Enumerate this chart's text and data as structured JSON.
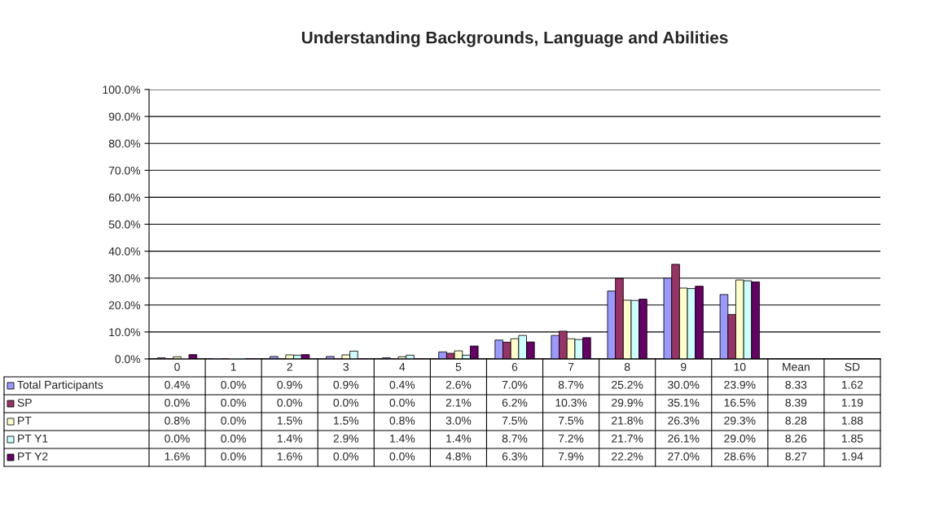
{
  "chart_data": {
    "type": "bar",
    "title": "Understanding Backgrounds, Language and Abilities",
    "categories": [
      "0",
      "1",
      "2",
      "3",
      "4",
      "5",
      "6",
      "7",
      "8",
      "9",
      "10",
      "Mean",
      "SD"
    ],
    "series": [
      {
        "name": "Total Participants",
        "color": "#9999ff",
        "values": [
          0.4,
          0.0,
          0.9,
          0.9,
          0.4,
          2.6,
          7.0,
          8.7,
          25.2,
          30.0,
          23.9,
          null,
          null
        ],
        "value_labels": [
          "0.4%",
          "0.0%",
          "0.9%",
          "0.9%",
          "0.4%",
          "2.6%",
          "7.0%",
          "8.7%",
          "25.2%",
          "30.0%",
          "23.9%",
          "8.33",
          "1.62"
        ]
      },
      {
        "name": "SP",
        "color": "#993366",
        "values": [
          0.0,
          0.0,
          0.0,
          0.0,
          0.0,
          2.1,
          6.2,
          10.3,
          29.9,
          35.1,
          16.5,
          null,
          null
        ],
        "value_labels": [
          "0.0%",
          "0.0%",
          "0.0%",
          "0.0%",
          "0.0%",
          "2.1%",
          "6.2%",
          "10.3%",
          "29.9%",
          "35.1%",
          "16.5%",
          "8.39",
          "1.19"
        ]
      },
      {
        "name": "PT",
        "color": "#ffffcc",
        "values": [
          0.8,
          0.0,
          1.5,
          1.5,
          0.8,
          3.0,
          7.5,
          7.5,
          21.8,
          26.3,
          29.3,
          null,
          null
        ],
        "value_labels": [
          "0.8%",
          "0.0%",
          "1.5%",
          "1.5%",
          "0.8%",
          "3.0%",
          "7.5%",
          "7.5%",
          "21.8%",
          "26.3%",
          "29.3%",
          "8.28",
          "1.88"
        ]
      },
      {
        "name": "PT Y1",
        "color": "#ccffff",
        "values": [
          0.0,
          0.0,
          1.4,
          2.9,
          1.4,
          1.4,
          8.7,
          7.2,
          21.7,
          26.1,
          29.0,
          null,
          null
        ],
        "value_labels": [
          "0.0%",
          "0.0%",
          "1.4%",
          "2.9%",
          "1.4%",
          "1.4%",
          "8.7%",
          "7.2%",
          "21.7%",
          "26.1%",
          "29.0%",
          "8.26",
          "1.85"
        ]
      },
      {
        "name": "PT Y2",
        "color": "#660066",
        "values": [
          1.6,
          0.0,
          1.6,
          0.0,
          0.0,
          4.8,
          6.3,
          7.9,
          22.2,
          27.0,
          28.6,
          null,
          null
        ],
        "value_labels": [
          "1.6%",
          "0.0%",
          "1.6%",
          "0.0%",
          "0.0%",
          "4.8%",
          "6.3%",
          "7.9%",
          "22.2%",
          "27.0%",
          "28.6%",
          "8.27",
          "1.94"
        ]
      }
    ],
    "ylim": [
      0,
      100
    ],
    "yticks": [
      {
        "value": 0,
        "label": "0.0%"
      },
      {
        "value": 10,
        "label": "10.0%"
      },
      {
        "value": 20,
        "label": "20.0%"
      },
      {
        "value": 30,
        "label": "30.0%"
      },
      {
        "value": 40,
        "label": "40.0%"
      },
      {
        "value": 50,
        "label": "50.0%"
      },
      {
        "value": 60,
        "label": "60.0%"
      },
      {
        "value": 70,
        "label": "70.0%"
      },
      {
        "value": 80,
        "label": "80.0%"
      },
      {
        "value": 90,
        "label": "90.0%"
      },
      {
        "value": 100,
        "label": "100.0%"
      }
    ],
    "grid": "y",
    "legend": "bottom"
  }
}
